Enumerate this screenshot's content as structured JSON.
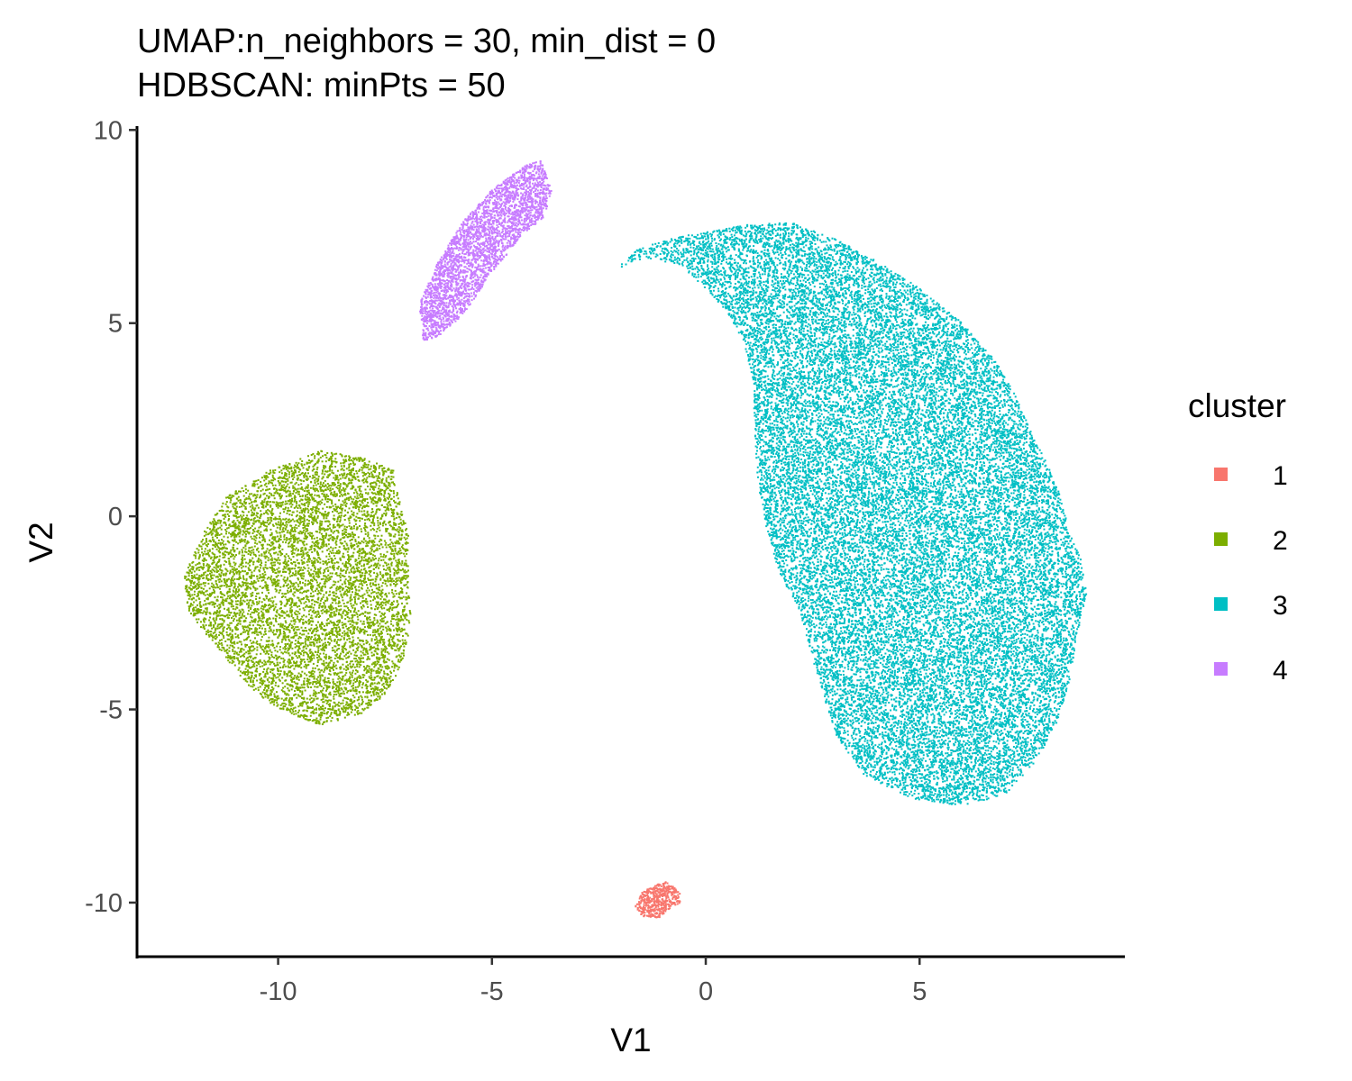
{
  "chart_data": {
    "type": "scatter",
    "title": "UMAP:n_neighbors = 30, min_dist = 0",
    "subtitle": "HDBSCAN: minPts = 50",
    "xlabel": "V1",
    "ylabel": "V2",
    "xlim": [
      -13.3,
      9.8
    ],
    "ylim": [
      -11.4,
      10.1
    ],
    "x_ticks": [
      -10,
      -5,
      0,
      5
    ],
    "x_tick_labels": [
      "-10",
      "-5",
      "0",
      "5"
    ],
    "y_ticks": [
      10,
      5,
      0,
      -5,
      -10
    ],
    "y_tick_labels": [
      "10",
      "5",
      "0",
      "-5",
      "-10"
    ],
    "grid": false,
    "legend": {
      "title": "cluster",
      "position": "right",
      "entries": [
        "1",
        "2",
        "3",
        "4"
      ]
    },
    "series": [
      {
        "name": "1",
        "color": "#F8766D",
        "approx_points": 450,
        "outline": [
          [
            -1.5,
            -9.75
          ],
          [
            -1.2,
            -9.55
          ],
          [
            -0.9,
            -9.45
          ],
          [
            -0.6,
            -9.75
          ],
          [
            -0.6,
            -10.0
          ],
          [
            -0.9,
            -10.2
          ],
          [
            -1.1,
            -10.4
          ],
          [
            -1.5,
            -10.35
          ],
          [
            -1.65,
            -10.1
          ]
        ]
      },
      {
        "name": "2",
        "color": "#7CAE00",
        "approx_points": 7500,
        "outline": [
          [
            -11.2,
            0.5
          ],
          [
            -10.2,
            1.2
          ],
          [
            -9.0,
            1.7
          ],
          [
            -8.0,
            1.5
          ],
          [
            -7.3,
            1.2
          ],
          [
            -7.15,
            0.35
          ],
          [
            -6.95,
            -0.5
          ],
          [
            -6.95,
            -1.5
          ],
          [
            -6.9,
            -2.5
          ],
          [
            -7.0,
            -3.5
          ],
          [
            -7.4,
            -4.5
          ],
          [
            -8.0,
            -5.1
          ],
          [
            -9.0,
            -5.4
          ],
          [
            -10.0,
            -5.0
          ],
          [
            -10.8,
            -4.3
          ],
          [
            -11.5,
            -3.3
          ],
          [
            -12.1,
            -2.5
          ],
          [
            -12.2,
            -1.6
          ],
          [
            -11.8,
            -0.5
          ]
        ]
      },
      {
        "name": "3",
        "color": "#00BFC4",
        "approx_points": 26000,
        "outline": [
          [
            -2.1,
            6.4
          ],
          [
            -1.6,
            6.9
          ],
          [
            -0.8,
            7.2
          ],
          [
            0.0,
            7.35
          ],
          [
            1.0,
            7.55
          ],
          [
            2.0,
            7.6
          ],
          [
            3.0,
            7.2
          ],
          [
            4.0,
            6.6
          ],
          [
            5.0,
            5.9
          ],
          [
            6.0,
            5.0
          ],
          [
            6.8,
            4.0
          ],
          [
            7.3,
            3.0
          ],
          [
            7.6,
            2.2
          ],
          [
            8.0,
            1.3
          ],
          [
            8.3,
            0.5
          ],
          [
            8.5,
            -0.4
          ],
          [
            8.8,
            -1.2
          ],
          [
            8.9,
            -2.0
          ],
          [
            8.7,
            -3.0
          ],
          [
            8.5,
            -4.3
          ],
          [
            8.2,
            -5.4
          ],
          [
            7.7,
            -6.4
          ],
          [
            7.0,
            -7.2
          ],
          [
            6.0,
            -7.5
          ],
          [
            4.8,
            -7.3
          ],
          [
            3.7,
            -6.7
          ],
          [
            3.1,
            -5.8
          ],
          [
            2.8,
            -4.8
          ],
          [
            2.5,
            -3.7
          ],
          [
            2.2,
            -2.5
          ],
          [
            1.7,
            -1.4
          ],
          [
            1.4,
            -0.2
          ],
          [
            1.2,
            1.0
          ],
          [
            1.15,
            2.2
          ],
          [
            1.1,
            3.5
          ],
          [
            0.9,
            4.5
          ],
          [
            0.5,
            5.3
          ],
          [
            0.0,
            5.9
          ],
          [
            -0.6,
            6.5
          ],
          [
            -1.4,
            6.7
          ]
        ]
      },
      {
        "name": "4",
        "color": "#C77CFF",
        "approx_points": 3000,
        "outline": [
          [
            -6.6,
            4.5
          ],
          [
            -6.7,
            5.5
          ],
          [
            -6.25,
            6.6
          ],
          [
            -5.7,
            7.6
          ],
          [
            -5.0,
            8.45
          ],
          [
            -4.2,
            9.1
          ],
          [
            -3.85,
            9.2
          ],
          [
            -3.6,
            8.4
          ],
          [
            -3.8,
            7.7
          ],
          [
            -4.3,
            7.3
          ],
          [
            -4.7,
            6.7
          ],
          [
            -5.1,
            6.2
          ],
          [
            -5.4,
            5.6
          ],
          [
            -5.8,
            5.1
          ],
          [
            -6.2,
            4.7
          ]
        ]
      }
    ]
  }
}
